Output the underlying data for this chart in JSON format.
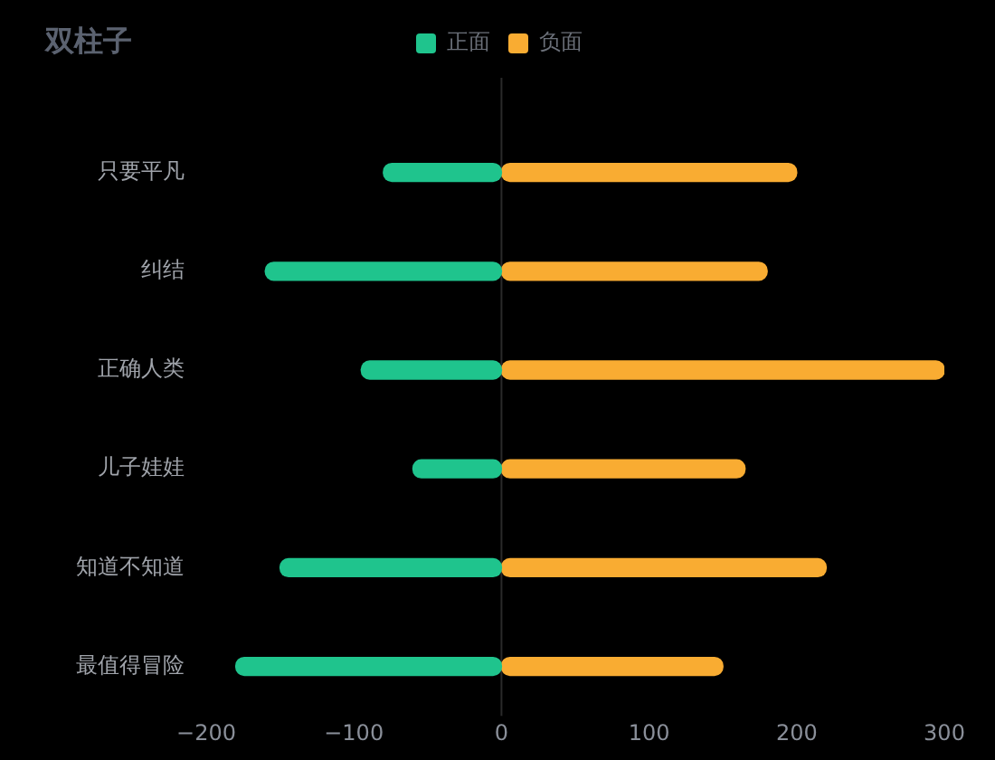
{
  "chart_data": {
    "type": "bar",
    "title": "双柱子",
    "orientation": "horizontal",
    "stacked": true,
    "categories": [
      "只要平凡",
      "纠结",
      "正确人类",
      "儿子娃娃",
      "知道不知道",
      "最值得冒险"
    ],
    "series": [
      {
        "name": "正面",
        "color": "#1fc48d",
        "values": [
          -80,
          -160,
          -95,
          -60,
          -150,
          -180
        ]
      },
      {
        "name": "负面",
        "color": "#f9ac32",
        "values": [
          200,
          180,
          300,
          165,
          220,
          150
        ]
      }
    ],
    "xlim": [
      -200,
      300
    ],
    "xticks": [
      -200,
      -100,
      0,
      100,
      200,
      300
    ],
    "ref_lines": [
      {
        "axis": "x",
        "value": 0,
        "color": "#2a2a2a"
      }
    ],
    "legend": "top",
    "grid": false
  }
}
